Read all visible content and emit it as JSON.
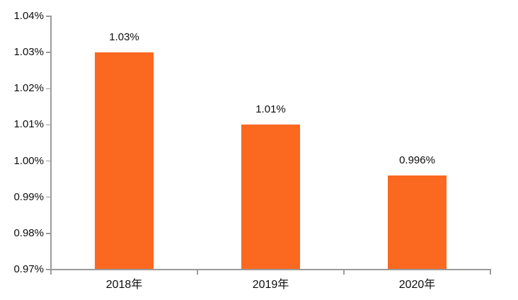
{
  "chart_data": {
    "type": "bar",
    "categories": [
      "2018年",
      "2019年",
      "2020年"
    ],
    "values": [
      1.03,
      1.01,
      0.996
    ],
    "data_labels": [
      "1.03%",
      "1.01%",
      "0.996%"
    ],
    "title": "",
    "xlabel": "",
    "ylabel": "",
    "ylim": [
      0.97,
      1.04
    ],
    "ytick_step": 0.01,
    "ytick_labels": [
      "0.97%",
      "0.98%",
      "0.99%",
      "1.00%",
      "1.01%",
      "1.02%",
      "1.03%",
      "1.04%"
    ],
    "grid": false,
    "legend_position": "none",
    "bar_color": "#FB6920",
    "axis_color": "#9A9A9A",
    "text_color": "#0D0D0D"
  }
}
